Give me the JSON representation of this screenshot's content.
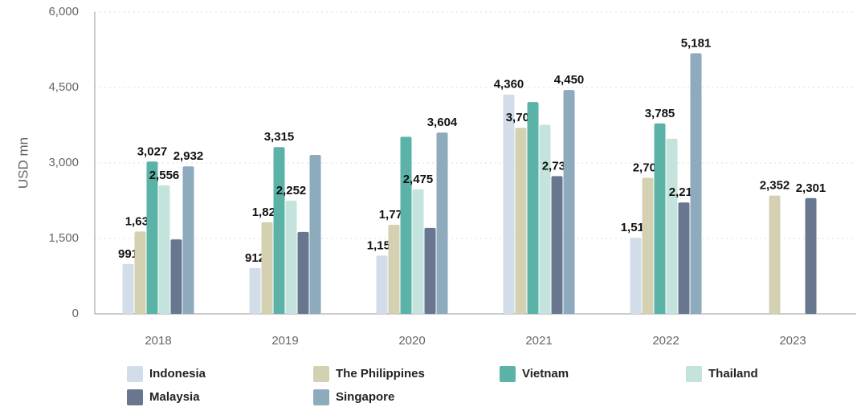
{
  "chart_data": {
    "type": "bar",
    "y_label": "USD mn",
    "categories": [
      "2018",
      "2019",
      "2020",
      "2021",
      "2022",
      "2023"
    ],
    "series": [
      {
        "name": "Indonesia",
        "color": "#d2dde9",
        "values": [
          991,
          912,
          1159,
          4360,
          1512,
          null
        ],
        "value_labels": [
          "991",
          "912",
          "1,159",
          "4,360",
          "1,512",
          null
        ]
      },
      {
        "name": "The Philippines",
        "color": "#d3d1b2",
        "values": [
          1638,
          1822,
          1772,
          3701,
          2704,
          2352
        ],
        "value_labels": [
          "1,638",
          "1,822",
          "1,772",
          "3,701",
          "2,704",
          "2,352"
        ]
      },
      {
        "name": "Vietnam",
        "color": "#5bb3a8",
        "values": [
          3027,
          3315,
          3520,
          4210,
          3785,
          null
        ],
        "value_labels": [
          "3,027",
          "3,315",
          null,
          null,
          "3,785",
          null
        ]
      },
      {
        "name": "Thailand",
        "color": "#c4e3dc",
        "values": [
          2556,
          2252,
          2475,
          3760,
          3480,
          null
        ],
        "value_labels": [
          "2,556",
          "2,252",
          "2,475",
          null,
          null,
          null
        ]
      },
      {
        "name": "Malaysia",
        "color": "#68778f",
        "values": [
          1480,
          1630,
          1710,
          2738,
          2215,
          2301
        ],
        "value_labels": [
          null,
          null,
          null,
          "2,738",
          "2,215",
          "2,301"
        ]
      },
      {
        "name": "Singapore",
        "color": "#8eaabd",
        "values": [
          2932,
          3160,
          3604,
          4450,
          5181,
          null
        ],
        "value_labels": [
          "2,932",
          null,
          "3,604",
          "4,450",
          "5,181",
          null
        ]
      }
    ],
    "ylim": [
      0,
      6000
    ],
    "yticks": [
      0,
      {
        "value": 1500,
        "label": "1,500"
      },
      {
        "value": 3000,
        "label": "3,000"
      },
      {
        "value": 4500,
        "label": "4,500"
      },
      {
        "value": 6000,
        "label": "6,000"
      }
    ],
    "grid": true,
    "legend": "bottom"
  }
}
